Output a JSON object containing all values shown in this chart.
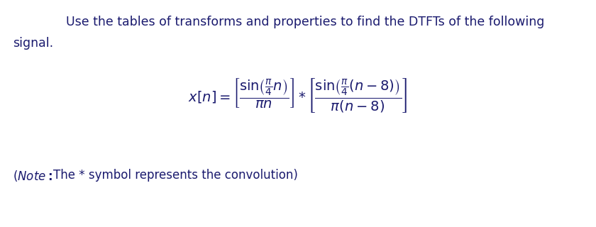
{
  "bg_color": "#ffffff",
  "title_line1": "Use the tables of transforms and properties to find the DTFTs of the following",
  "title_line2": "signal.",
  "text_color": "#1a1a6e",
  "font_size_title": 12.5,
  "font_size_eq": 14,
  "font_size_note": 12,
  "fig_width": 8.4,
  "fig_height": 3.2,
  "fig_dpi": 100
}
